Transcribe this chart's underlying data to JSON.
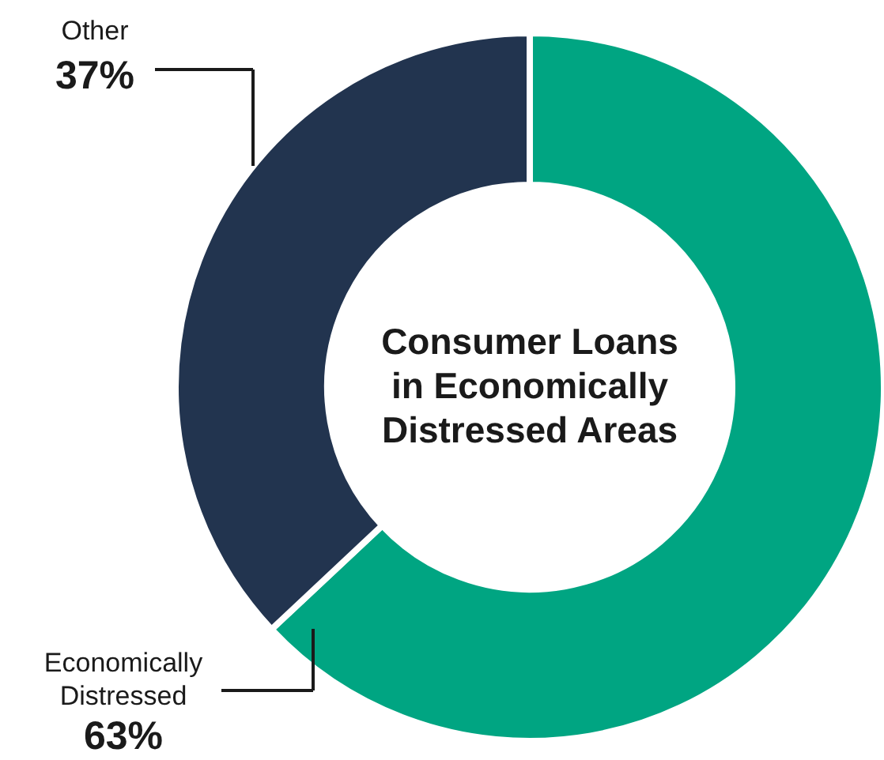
{
  "chart_data": {
    "type": "donut",
    "title": "Consumer Loans in Economically Distressed Areas",
    "categories": [
      "Economically Distressed",
      "Other"
    ],
    "values": [
      63,
      37
    ],
    "colors": [
      "#00a582",
      "#22344f"
    ],
    "value_labels": [
      "63%",
      "37%"
    ]
  }
}
